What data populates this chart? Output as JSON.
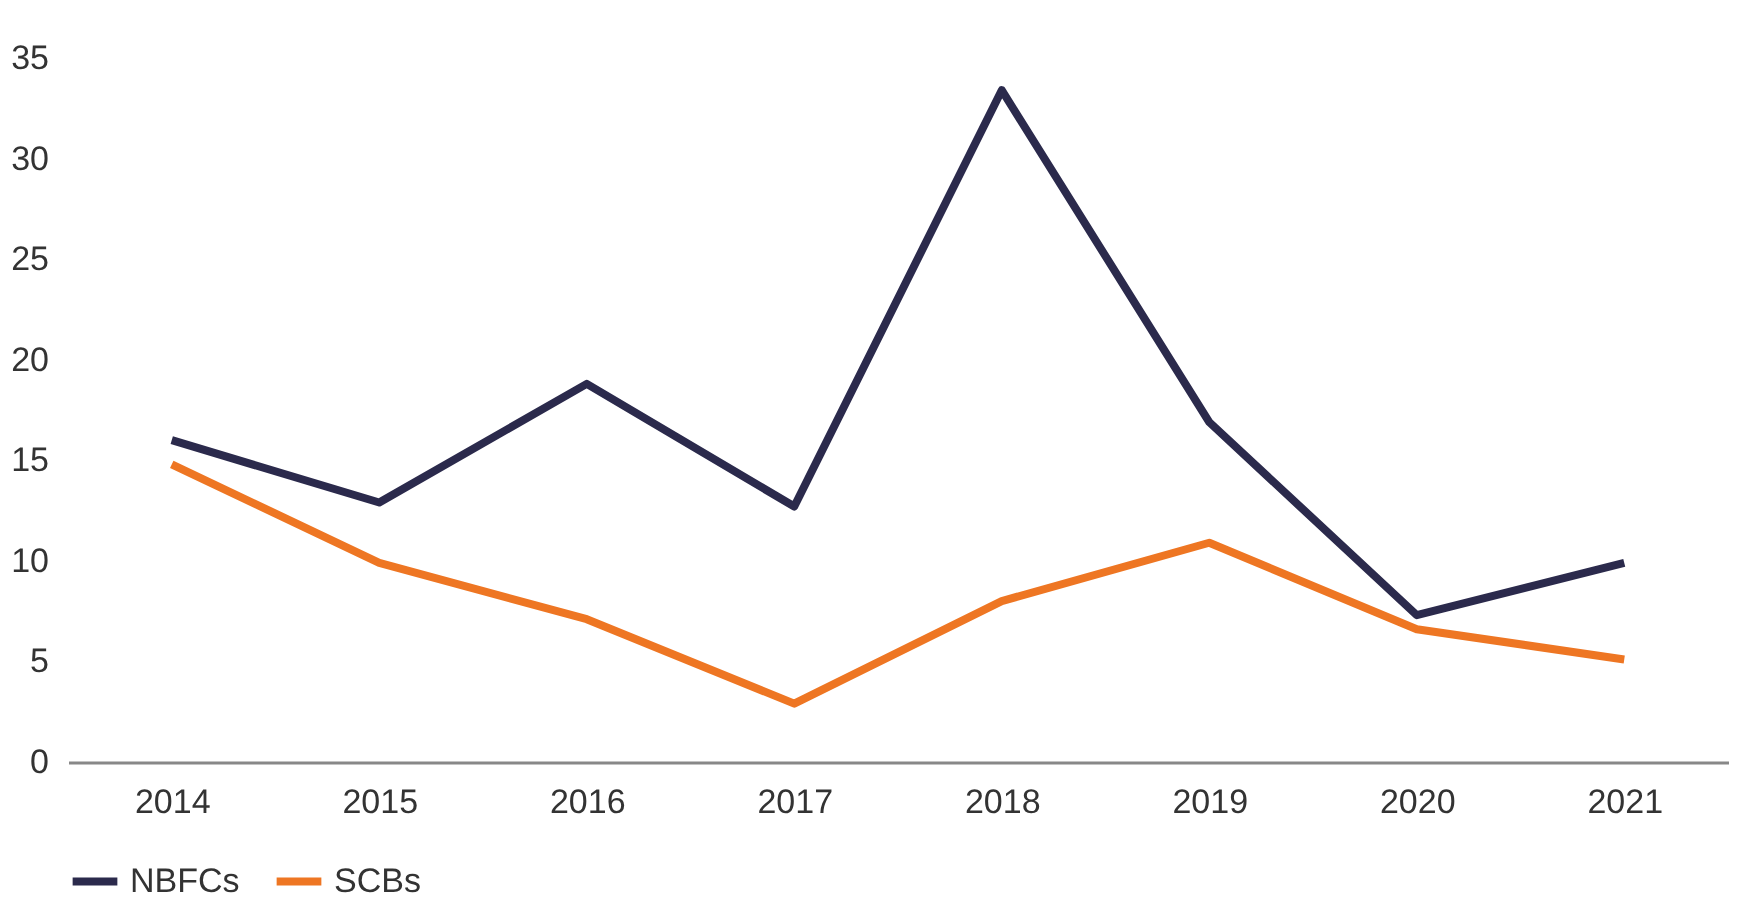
{
  "chart_data": {
    "type": "line",
    "categories": [
      "2014",
      "2015",
      "2016",
      "2017",
      "2018",
      "2019",
      "2020",
      "2021"
    ],
    "series": [
      {
        "name": "NBFCs",
        "color": "#2b2a4c",
        "values": [
          16.0,
          12.9,
          18.8,
          12.7,
          33.4,
          16.9,
          7.3,
          9.9
        ]
      },
      {
        "name": "SCBs",
        "color": "#ee7623",
        "values": [
          14.8,
          9.9,
          7.1,
          2.9,
          8.0,
          10.9,
          6.6,
          5.1
        ]
      }
    ],
    "ylim": [
      0,
      35
    ],
    "yticks": [
      0,
      5,
      10,
      15,
      20,
      25,
      30,
      35
    ],
    "grid": false,
    "legend": "bottom",
    "marker": "none",
    "line_style": "solid"
  }
}
